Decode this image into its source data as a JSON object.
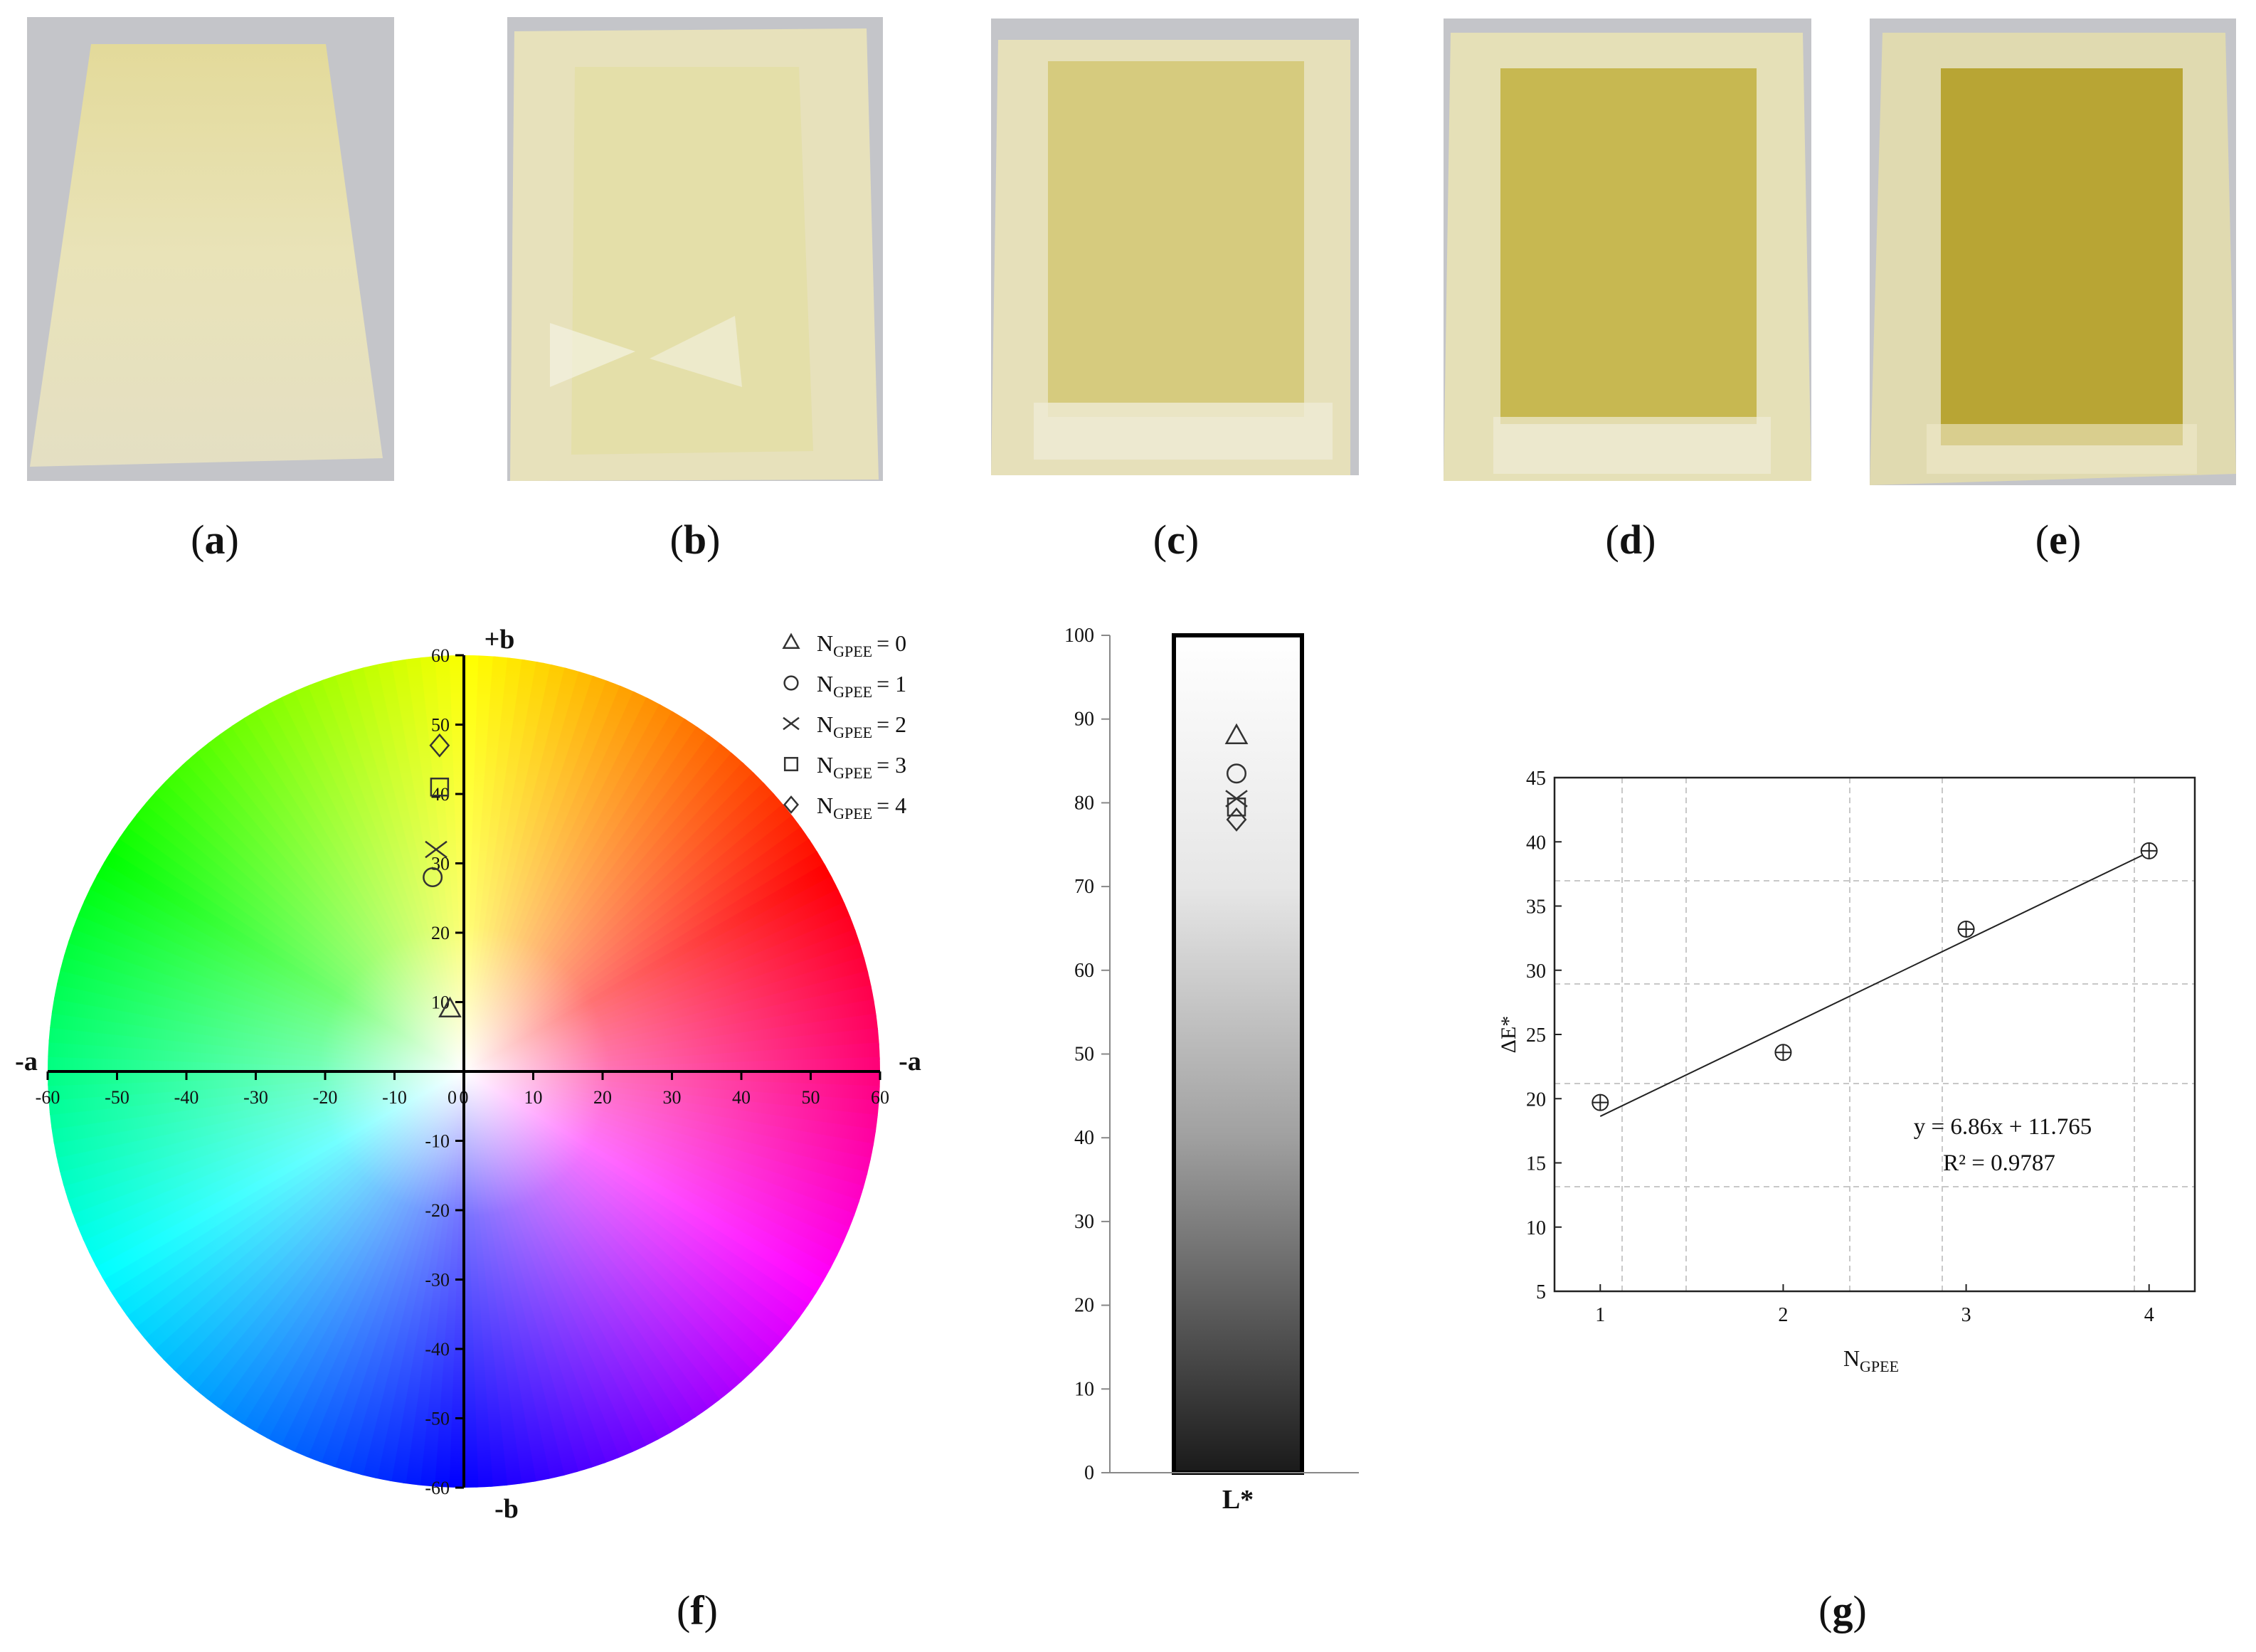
{
  "panels": [
    {
      "id": "a",
      "label": "a"
    },
    {
      "id": "b",
      "label": "b"
    },
    {
      "id": "c",
      "label": "c"
    },
    {
      "id": "d",
      "label": "d"
    },
    {
      "id": "e",
      "label": "e"
    }
  ],
  "colors": {
    "film_light": "#e6e2b2",
    "film_mid": "#d9d08a",
    "film_dark": "#b9a635",
    "background": "#c4c5c9"
  },
  "chart_data": [
    {
      "panel": "f",
      "type": "scatter",
      "title": "",
      "axis_labels": {
        "top": "+b",
        "bottom": "-b",
        "left": "-a",
        "right": "-a"
      },
      "xlim": [
        -60,
        60
      ],
      "ylim": [
        -60,
        60
      ],
      "ticks": [
        -60,
        -50,
        -40,
        -30,
        -20,
        -10,
        0,
        10,
        20,
        30,
        40,
        50,
        60
      ],
      "grid": false,
      "legend_position": "top-right",
      "series": [
        {
          "name": "N_GPEE = 0",
          "legend_base": "N",
          "legend_sub": "GPEE",
          "legend_value": "= 0",
          "marker": "triangle",
          "x": -2,
          "y": 9
        },
        {
          "name": "N_GPEE = 1",
          "legend_base": "N",
          "legend_sub": "GPEE",
          "legend_value": "= 1",
          "marker": "circle",
          "x": -4.5,
          "y": 28
        },
        {
          "name": "N_GPEE = 2",
          "legend_base": "N",
          "legend_sub": "GPEE",
          "legend_value": "= 2",
          "marker": "x",
          "x": -4,
          "y": 32
        },
        {
          "name": "N_GPEE = 3",
          "legend_base": "N",
          "legend_sub": "GPEE",
          "legend_value": "= 3",
          "marker": "square",
          "x": -3.5,
          "y": 41
        },
        {
          "name": "N_GPEE = 4",
          "legend_base": "N",
          "legend_sub": "GPEE",
          "legend_value": "= 4",
          "marker": "diamond",
          "x": -3.5,
          "y": 47
        }
      ]
    },
    {
      "panel": "f",
      "type": "scatter",
      "xlabel": "L*",
      "ylim": [
        0,
        100
      ],
      "ticks": [
        0,
        10,
        20,
        30,
        40,
        50,
        60,
        70,
        80,
        90,
        100
      ],
      "series": [
        {
          "marker": "triangle",
          "value": 88
        },
        {
          "marker": "circle",
          "value": 83.5
        },
        {
          "marker": "x",
          "value": 80.5
        },
        {
          "marker": "square",
          "value": 79.5
        },
        {
          "marker": "diamond",
          "value": 78
        }
      ]
    },
    {
      "panel": "g",
      "type": "scatter",
      "xlabel_base": "N",
      "xlabel_sub": "GPEE",
      "ylabel": "ΔE*",
      "xlim": [
        0.75,
        4.25
      ],
      "ylim": [
        5,
        45
      ],
      "xticks": [
        1,
        2,
        3,
        4
      ],
      "yticks": [
        5,
        10,
        15,
        20,
        25,
        30,
        35,
        40,
        45
      ],
      "grid": true,
      "x": [
        1,
        2,
        3,
        4
      ],
      "y": [
        19.7,
        23.6,
        33.2,
        39.3
      ],
      "trendline": {
        "slope": 6.86,
        "intercept": 11.765
      },
      "annotations": [
        "y = 6.86x + 11.765",
        "R² = 0.9787"
      ]
    }
  ],
  "figure_labels": {
    "f": "f",
    "g": "g"
  }
}
